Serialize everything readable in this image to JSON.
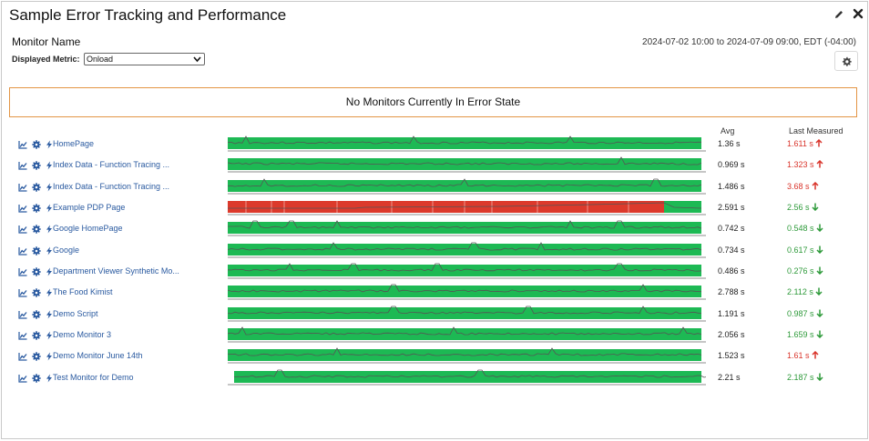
{
  "window": {
    "title": "Sample Error Tracking and Performance",
    "edit_icon": "pencil-icon",
    "close_icon": "close-icon"
  },
  "header": {
    "monitor_name": "Monitor Name",
    "date_range": "2024-07-02 10:00 to 2024-07-09 09:00, EDT (-04:00)",
    "metric_label": "Displayed Metric:",
    "metric_value": "Onload",
    "settings_icon": "gear-icon"
  },
  "error_banner": "No Monitors Currently In Error State",
  "columns": {
    "avg": "Avg",
    "last": "Last Measured"
  },
  "colors": {
    "ok": "#1db954",
    "error": "#dc3a2c",
    "line": "#555555",
    "up": "#d9342b",
    "down": "#2e9a3a",
    "link": "#2a5aa0",
    "banner_border": "#e39545"
  },
  "monitors": [
    {
      "name": "HomePage",
      "avg": "1.36 s",
      "last": "1.611 s",
      "trend": "up",
      "status": "ok"
    },
    {
      "name": "Index Data - Function Tracing ...",
      "avg": "0.969 s",
      "last": "1.323 s",
      "trend": "up",
      "status": "ok"
    },
    {
      "name": "Index Data - Function Tracing ...",
      "avg": "1.486 s",
      "last": "3.68 s",
      "trend": "up",
      "status": "ok"
    },
    {
      "name": "Example PDP Page",
      "avg": "2.591 s",
      "last": "2.56 s",
      "trend": "down",
      "status": "error"
    },
    {
      "name": "Google HomePage",
      "avg": "0.742 s",
      "last": "0.548 s",
      "trend": "down",
      "status": "ok"
    },
    {
      "name": "Google",
      "avg": "0.734 s",
      "last": "0.617 s",
      "trend": "down",
      "status": "ok"
    },
    {
      "name": "Department Viewer Synthetic Mo...",
      "avg": "0.486 s",
      "last": "0.276 s",
      "trend": "down",
      "status": "ok"
    },
    {
      "name": "The Food Kimist",
      "avg": "2.788 s",
      "last": "2.112 s",
      "trend": "down",
      "status": "ok"
    },
    {
      "name": "Demo Script",
      "avg": "1.191 s",
      "last": "0.987 s",
      "trend": "down",
      "status": "ok"
    },
    {
      "name": "Demo Monitor 3",
      "avg": "2.056 s",
      "last": "1.659 s",
      "trend": "down",
      "status": "ok"
    },
    {
      "name": "Demo Monitor June 14th",
      "avg": "1.523 s",
      "last": "1.61 s",
      "trend": "up",
      "status": "ok"
    },
    {
      "name": "Test Monitor for Demo",
      "avg": "2.21 s",
      "last": "2.187 s",
      "trend": "down",
      "status": "ok"
    }
  ]
}
